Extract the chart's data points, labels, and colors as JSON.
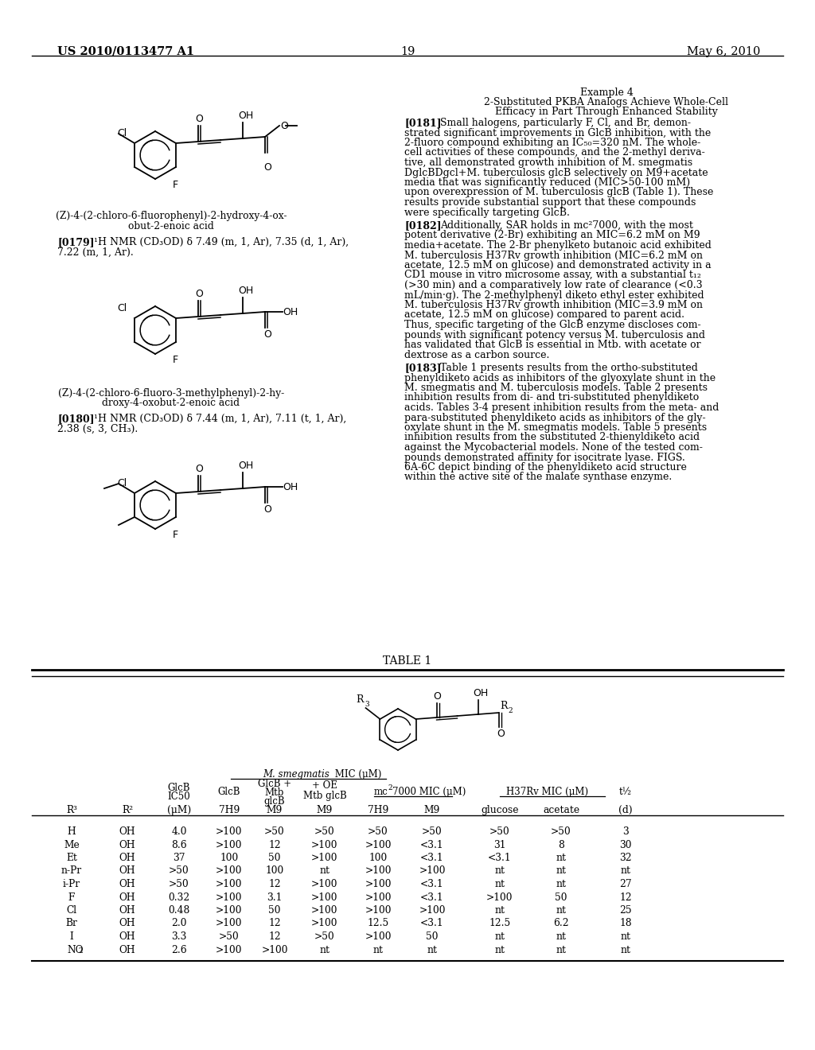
{
  "page_header_left": "US 2010/0113477 A1",
  "page_header_right": "May 6, 2010",
  "page_number": "19",
  "bg_color": "#ffffff",
  "text_color": "#000000",
  "table_title": "TABLE 1",
  "table_data": [
    [
      "H",
      "OH",
      "4.0",
      ">100",
      ">50",
      ">50",
      ">50",
      ">50",
      ">50",
      ">50",
      "3"
    ],
    [
      "Me",
      "OH",
      "8.6",
      ">100",
      "12",
      ">100",
      ">100",
      "<3.1",
      "31",
      "8",
      "30"
    ],
    [
      "Et",
      "OH",
      "37",
      "100",
      "50",
      ">100",
      "100",
      "<3.1",
      "<3.1",
      "nt",
      "32"
    ],
    [
      "n-Pr",
      "OH",
      ">50",
      ">100",
      "100",
      "nt",
      ">100",
      ">100",
      "nt",
      "nt",
      "nt"
    ],
    [
      "i-Pr",
      "OH",
      ">50",
      ">100",
      "12",
      ">100",
      ">100",
      "<3.1",
      "nt",
      "nt",
      "27"
    ],
    [
      "F",
      "OH",
      "0.32",
      ">100",
      "3.1",
      ">100",
      ">100",
      "<3.1",
      ">100",
      "50",
      "12"
    ],
    [
      "Cl",
      "OH",
      "0.48",
      ">100",
      "50",
      ">100",
      ">100",
      ">100",
      "nt",
      "nt",
      "25"
    ],
    [
      "Br",
      "OH",
      "2.0",
      ">100",
      "12",
      ">100",
      "12.5",
      "<3.1",
      "12.5",
      "6.2",
      "18"
    ],
    [
      "I",
      "OH",
      "3.3",
      ">50",
      "12",
      ">50",
      ">100",
      "50",
      "nt",
      "nt",
      "nt"
    ],
    [
      "NO2",
      "OH",
      "2.6",
      ">100",
      ">100",
      "nt",
      "nt",
      "nt",
      "nt",
      "nt",
      "nt"
    ]
  ]
}
